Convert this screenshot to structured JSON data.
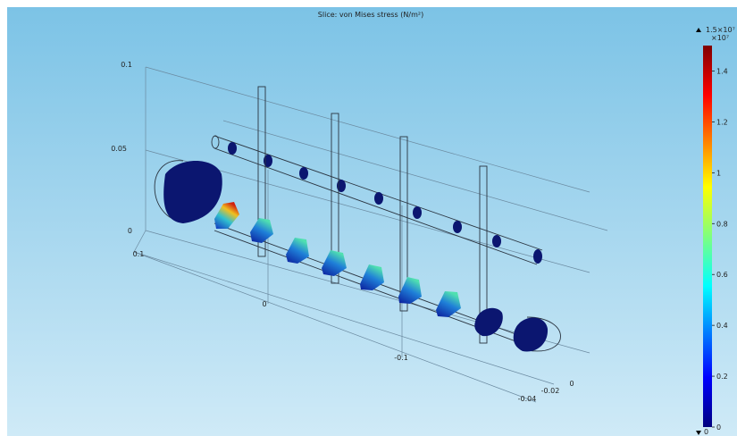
{
  "title": "Slice: von Mises stress (N/m²)",
  "colorbar": {
    "max_label": "1.5×10⁷",
    "multiplier": "×10⁷",
    "min_label": "0",
    "lim": [
      0,
      1.5
    ],
    "ticks": [
      0,
      0.2,
      0.4,
      0.6,
      0.8,
      1,
      1.2,
      1.4
    ]
  },
  "axes": {
    "z_ticks": [
      "0.1",
      "0.05",
      "0"
    ],
    "x_ticks": [
      "0.1",
      "0",
      "-0.1"
    ],
    "y_ticks": [
      "0",
      "-0.02",
      "-0.04"
    ]
  }
}
